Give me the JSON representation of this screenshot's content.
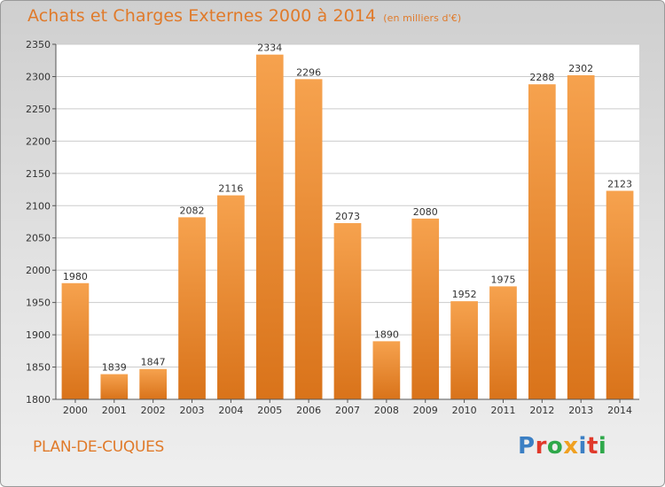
{
  "header": {
    "title": "Achats et Charges Externes 2000 à 2014",
    "unit": "(en milliers d'€)"
  },
  "footer": {
    "city": "PLAN-DE-CUQUES",
    "logo": "Proxiti",
    "logo_colors": [
      "#3b7fc4",
      "#e0392b",
      "#2ea84a",
      "#f0a020",
      "#3b7fc4",
      "#e0392b",
      "#2ea84a"
    ]
  },
  "colors": {
    "bar_light": "#f6a24e",
    "bar_dark": "#d9731a",
    "grid": "#cccccc",
    "accent": "#e07a2a"
  },
  "chart_data": {
    "type": "bar",
    "title": "Achats et Charges Externes 2000 à 2014",
    "categories": [
      "2000",
      "2001",
      "2002",
      "2003",
      "2004",
      "2005",
      "2006",
      "2007",
      "2008",
      "2009",
      "2010",
      "2011",
      "2012",
      "2013",
      "2014"
    ],
    "values": [
      1980,
      1839,
      1847,
      2082,
      2116,
      2334,
      2296,
      2073,
      1890,
      2080,
      1952,
      1975,
      2288,
      2302,
      2123
    ],
    "ylim": [
      1800,
      2350
    ],
    "yticks": [
      1800,
      1850,
      1900,
      1950,
      2000,
      2050,
      2100,
      2150,
      2200,
      2250,
      2300,
      2350
    ],
    "grid": true,
    "xlabel": "",
    "ylabel": ""
  }
}
